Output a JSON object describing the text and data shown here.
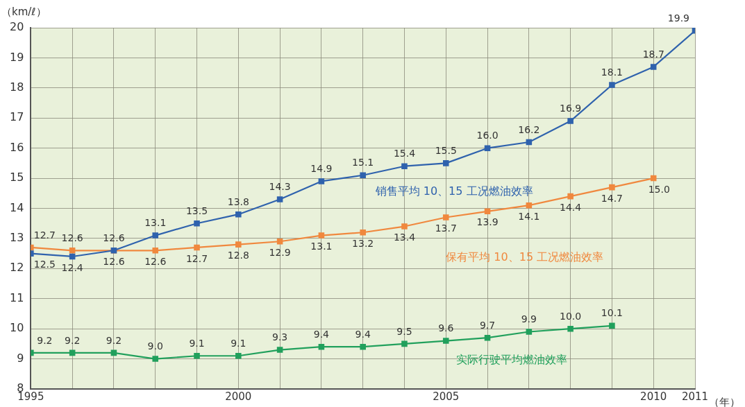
{
  "chart_data": {
    "type": "line",
    "ylabel": "（km/ℓ）",
    "xlabel": "（年）",
    "x": [
      1995,
      1996,
      1997,
      1998,
      1999,
      2000,
      2001,
      2002,
      2003,
      2004,
      2005,
      2006,
      2007,
      2008,
      2009,
      2010,
      2011
    ],
    "series": [
      {
        "name": "销售平均 10、15 工况燃油效率",
        "color": "#2f62ad",
        "values": [
          12.5,
          12.4,
          12.6,
          13.1,
          13.5,
          13.8,
          14.3,
          14.9,
          15.1,
          15.4,
          15.5,
          16.0,
          16.2,
          16.9,
          18.1,
          18.7,
          19.9
        ],
        "value_labels": [
          "12.5",
          "12.4",
          "12.6",
          "13.1",
          "13.5",
          "13.8",
          "14.3",
          "14.9",
          "15.1",
          "15.4",
          "15.5",
          "16.0",
          "16.2",
          "16.9",
          "18.1",
          "18.7",
          "19.9"
        ]
      },
      {
        "name": "保有平均 10、15 工况燃油效率",
        "color": "#f0883e",
        "values": [
          12.7,
          12.6,
          12.6,
          12.6,
          12.7,
          12.8,
          12.9,
          13.1,
          13.2,
          13.4,
          13.7,
          13.9,
          14.1,
          14.4,
          14.7,
          15.0,
          null
        ],
        "value_labels": [
          "12.7",
          "12.6",
          "12.6",
          "12.6",
          "12.7",
          "12.8",
          "12.9",
          "13.1",
          "13.2",
          "13.4",
          "13.7",
          "13.9",
          "14.1",
          "14.4",
          "14.7",
          "15.0",
          null
        ]
      },
      {
        "name": "实际行驶平均燃油效率",
        "color": "#21a05c",
        "values": [
          9.2,
          9.2,
          9.2,
          9.0,
          9.1,
          9.1,
          9.3,
          9.4,
          9.4,
          9.5,
          9.6,
          9.7,
          9.9,
          10.0,
          10.1,
          null,
          null
        ],
        "value_labels": [
          "9.2",
          "9.2",
          "9.2",
          "9.0",
          "9.1",
          "9.1",
          "9.3",
          "9.4",
          "9.4",
          "9.5",
          "9.6",
          "9.7",
          "9.9",
          "10.0",
          "10.1",
          null,
          null
        ]
      }
    ],
    "xlim": [
      1995,
      2011
    ],
    "xticks": [
      1995,
      {
        "value": 1996,
        "label": null
      },
      {
        "value": 1997,
        "label": null
      },
      {
        "value": 1998,
        "label": null
      },
      {
        "value": 1999,
        "label": null
      },
      2000,
      {
        "value": 2001,
        "label": null
      },
      {
        "value": 2002,
        "label": null
      },
      {
        "value": 2003,
        "label": null
      },
      {
        "value": 2004,
        "label": null
      },
      2005,
      {
        "value": 2006,
        "label": null
      },
      {
        "value": 2007,
        "label": null
      },
      {
        "value": 2008,
        "label": null
      },
      {
        "value": 2009,
        "label": null
      },
      2010,
      2011
    ],
    "ylim": [
      8,
      20
    ],
    "yticks": [
      8,
      9,
      10,
      11,
      12,
      13,
      14,
      15,
      16,
      17,
      18,
      19,
      20
    ],
    "grid": true,
    "legend": false,
    "marker": "square",
    "line_style": "solid"
  }
}
